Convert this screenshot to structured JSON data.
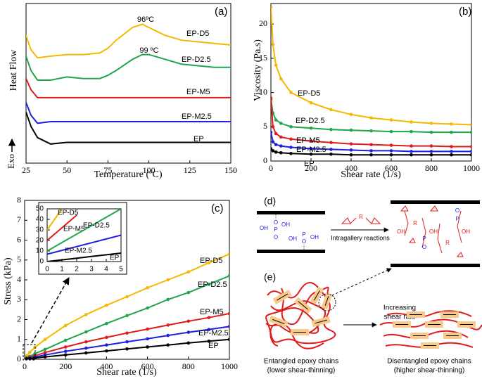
{
  "chart_data": [
    {
      "type": "line",
      "panel_label": "(a)",
      "x_label": "Temperature (ºC)",
      "y_label": "Heat Flow",
      "y_direction_label": "Exo",
      "annotations": [
        "96ºC",
        "99 ºC"
      ],
      "x": [
        25,
        28,
        32,
        40,
        50,
        60,
        70,
        75,
        80,
        90,
        96,
        100,
        110,
        120,
        130,
        140,
        150
      ],
      "xlim": [
        25,
        150
      ],
      "xticks": [
        25,
        50,
        75,
        100,
        125,
        150
      ],
      "ylim": [
        0,
        10
      ],
      "markers": false,
      "series": [
        {
          "name": "EP-D5",
          "color": "#f5b800",
          "values": [
            8.0,
            7.1,
            6.6,
            6.7,
            6.8,
            6.8,
            6.9,
            7.2,
            7.7,
            8.5,
            8.7,
            8.5,
            8.0,
            7.7,
            7.6,
            7.5,
            7.4
          ]
        },
        {
          "name": "EP-D2.5",
          "color": "#1fa64a",
          "values": [
            6.7,
            5.8,
            5.2,
            5.2,
            5.4,
            5.3,
            5.3,
            5.5,
            5.8,
            6.5,
            6.8,
            6.8,
            6.5,
            6.2,
            6.1,
            6.0,
            6.0
          ]
        },
        {
          "name": "EP-M5",
          "color": "#e01b1b",
          "values": [
            5.3,
            4.6,
            4.1,
            4.1,
            4.1,
            4.1,
            4.1,
            4.1,
            4.1,
            4.1,
            4.1,
            4.1,
            4.1,
            4.1,
            4.1,
            4.1,
            4.1
          ]
        },
        {
          "name": "EP-M2.5",
          "color": "#1f1fe0",
          "values": [
            3.8,
            3.0,
            2.5,
            2.6,
            2.6,
            2.6,
            2.6,
            2.6,
            2.6,
            2.6,
            2.6,
            2.6,
            2.6,
            2.6,
            2.6,
            2.6,
            2.6
          ]
        },
        {
          "name": "EP",
          "color": "#000000",
          "values": [
            3.2,
            2.3,
            1.6,
            1.2,
            1.3,
            1.3,
            1.3,
            1.3,
            1.3,
            1.3,
            1.3,
            1.3,
            1.3,
            1.3,
            1.3,
            1.3,
            1.3
          ]
        }
      ]
    },
    {
      "type": "line",
      "panel_label": "(b)",
      "x_label": "Shear rate (1/s)",
      "y_label": "Viscosity (Pa.s)",
      "x": [
        0,
        10,
        25,
        50,
        100,
        200,
        300,
        400,
        500,
        600,
        700,
        800,
        900,
        1000
      ],
      "xlim": [
        0,
        1000
      ],
      "xticks": [
        0,
        200,
        400,
        600,
        800,
        1000
      ],
      "ylim": [
        0,
        23
      ],
      "yticks": [
        0,
        5,
        10,
        15,
        20
      ],
      "markers": true,
      "series": [
        {
          "name": "EP-D5",
          "color": "#f5b800",
          "values": [
            22.5,
            17,
            14,
            12,
            10,
            8.5,
            7.5,
            6.8,
            6.3,
            6.0,
            5.7,
            5.5,
            5.4,
            5.3
          ]
        },
        {
          "name": "EP-D2.5",
          "color": "#1fa64a",
          "values": [
            9,
            7,
            6,
            5.5,
            5,
            4.8,
            4.6,
            4.5,
            4.4,
            4.3,
            4.3,
            4.2,
            4.2,
            4.2
          ]
        },
        {
          "name": "EP-M5",
          "color": "#e01b1b",
          "values": [
            9.2,
            5,
            4,
            3.5,
            3.2,
            2.9,
            2.7,
            2.5,
            2.4,
            2.3,
            2.2,
            2.2,
            2.1,
            2.1
          ]
        },
        {
          "name": "EP-M2.5",
          "color": "#1f1fe0",
          "values": [
            4.2,
            2.8,
            2.4,
            2.2,
            2.0,
            1.8,
            1.7,
            1.6,
            1.5,
            1.5,
            1.4,
            1.4,
            1.4,
            1.4
          ]
        },
        {
          "name": "EP",
          "color": "#000000",
          "values": [
            1.8,
            1.5,
            1.3,
            1.2,
            1.1,
            1.0,
            1.0,
            0.9,
            0.9,
            0.9,
            0.9,
            0.9,
            0.9,
            0.9
          ]
        }
      ]
    },
    {
      "type": "line",
      "panel_label": "(c)",
      "x_label": "Shear rate (1/s)",
      "y_label": "Stress (kPa)",
      "x": [
        0,
        10,
        25,
        50,
        100,
        200,
        300,
        400,
        500,
        600,
        700,
        800,
        900,
        1000
      ],
      "xlim": [
        0,
        1000
      ],
      "xticks": [
        0,
        200,
        400,
        600,
        800,
        1000
      ],
      "ylim": [
        0,
        8
      ],
      "yticks": [
        0,
        1,
        2,
        3,
        4,
        5,
        6,
        7,
        8
      ],
      "markers": true,
      "series": [
        {
          "name": "EP-D5",
          "color": "#f5b800",
          "values": [
            0,
            0.17,
            0.35,
            0.6,
            1.0,
            1.7,
            2.25,
            2.72,
            3.15,
            3.6,
            4.0,
            4.4,
            4.86,
            5.3
          ]
        },
        {
          "name": "EP-D2.5",
          "color": "#1fa64a",
          "values": [
            0,
            0.07,
            0.15,
            0.28,
            0.5,
            0.96,
            1.38,
            1.8,
            2.2,
            2.58,
            3.01,
            3.36,
            3.78,
            4.2
          ]
        },
        {
          "name": "EP-M5",
          "color": "#e01b1b",
          "values": [
            0,
            0.05,
            0.1,
            0.18,
            0.34,
            0.62,
            0.88,
            1.1,
            1.32,
            1.52,
            1.72,
            1.92,
            2.1,
            2.3
          ]
        },
        {
          "name": "EP-M2.5",
          "color": "#1f1fe0",
          "values": [
            0,
            0.03,
            0.06,
            0.11,
            0.22,
            0.4,
            0.56,
            0.72,
            0.88,
            1.03,
            1.2,
            1.36,
            1.5,
            1.65
          ]
        },
        {
          "name": "EP",
          "color": "#000000",
          "values": [
            0,
            0.015,
            0.03,
            0.06,
            0.12,
            0.22,
            0.32,
            0.42,
            0.52,
            0.62,
            0.72,
            0.82,
            0.91,
            1.0
          ]
        }
      ]
    },
    {
      "type": "line",
      "x": [
        0,
        1,
        2,
        3,
        4,
        5
      ],
      "xlim": [
        0,
        5
      ],
      "xticks": [
        0,
        1,
        2,
        3,
        4,
        5
      ],
      "ylim": [
        0,
        50
      ],
      "yticks": [
        0,
        10,
        20,
        30,
        40,
        50
      ],
      "markers": false,
      "series": [
        {
          "name": "EP-D5",
          "color": "#f5b800",
          "values": [
            30,
            50,
            null,
            null,
            null,
            null
          ]
        },
        {
          "name": "EP-M5",
          "color": "#e01b1b",
          "values": [
            20,
            32,
            44,
            null,
            null,
            null
          ]
        },
        {
          "name": "EP-D2.5",
          "color": "#1fa64a",
          "values": [
            10,
            18,
            26,
            34,
            42,
            50
          ]
        },
        {
          "name": "EP-M2.5",
          "color": "#1f1fe0",
          "values": [
            7,
            10.6,
            14.2,
            17.8,
            21.4,
            25
          ]
        },
        {
          "name": "EP",
          "color": "#000000",
          "values": [
            0,
            1.6,
            3.2,
            4.8,
            6.4,
            8
          ]
        }
      ]
    }
  ],
  "diagram_d": {
    "label": "(d)",
    "reaction": "Intragallery reactions",
    "atoms": [
      "O",
      "P",
      "OH",
      "R"
    ]
  },
  "diagram_e": {
    "label": "(e)",
    "process": [
      "Increasing",
      "shear rate"
    ],
    "left_caption": [
      "Entangled epoxy chains",
      "(lower shear-thinning)"
    ],
    "right_caption": [
      "Disentangled epoxy chains",
      "(higher shear-thinning)"
    ]
  }
}
